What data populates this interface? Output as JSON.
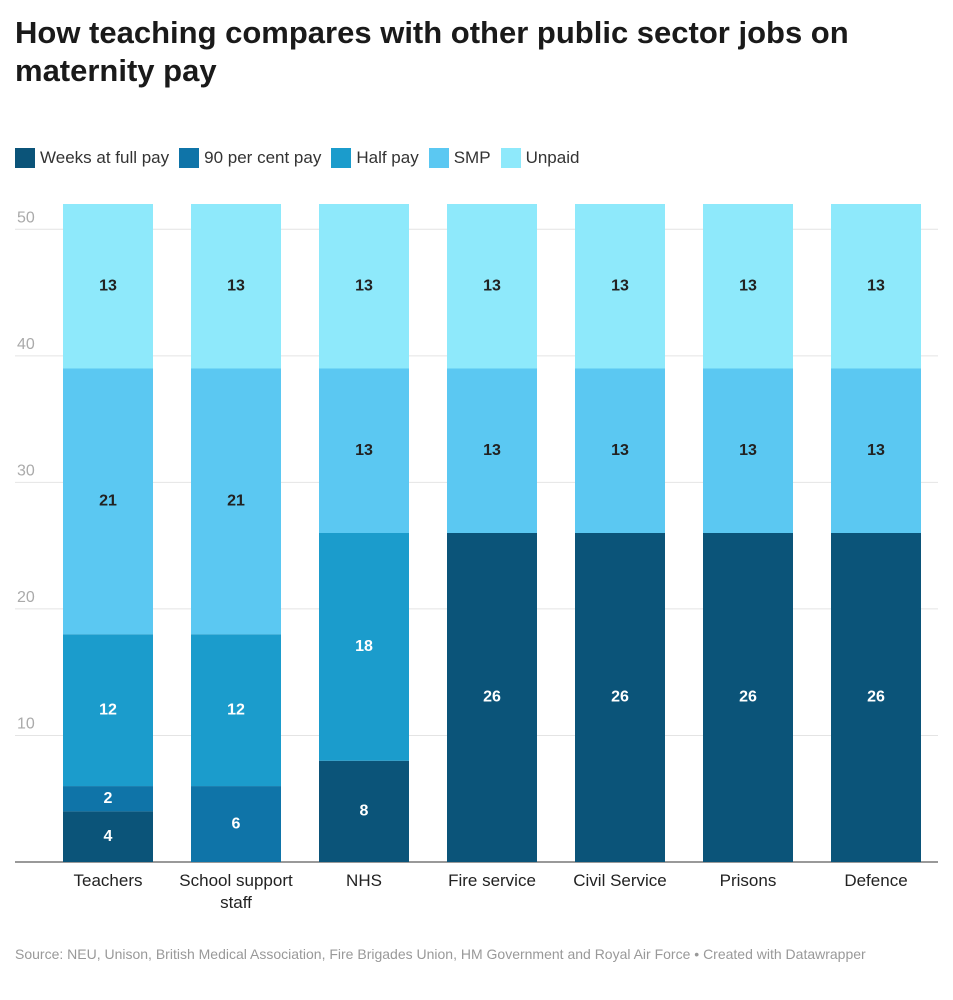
{
  "chart_data": {
    "type": "stacked_bar",
    "title": "How teaching compares with other public sector jobs on maternity pay",
    "categories": [
      "Teachers",
      "School support staff",
      "NHS",
      "Fire service",
      "Civil Service",
      "Prisons",
      "Defence"
    ],
    "series": [
      {
        "name": "Weeks at full pay",
        "color": "#0b5479",
        "values": [
          4,
          0,
          8,
          26,
          26,
          26,
          26
        ]
      },
      {
        "name": "90 per cent pay",
        "color": "#0f74a8",
        "values": [
          2,
          6,
          0,
          0,
          0,
          0,
          0
        ]
      },
      {
        "name": "Half pay",
        "color": "#1b9ccc",
        "values": [
          12,
          12,
          18,
          0,
          0,
          0,
          0
        ]
      },
      {
        "name": "SMP",
        "color": "#5bc8f2",
        "values": [
          21,
          21,
          13,
          13,
          13,
          13,
          13
        ]
      },
      {
        "name": "Unpaid",
        "color": "#8ee9fb",
        "values": [
          13,
          13,
          13,
          13,
          13,
          13,
          13
        ]
      }
    ],
    "ylim": [
      0,
      52
    ],
    "yticks": [
      10,
      20,
      30,
      40,
      50
    ],
    "grid": true,
    "source": "Source: NEU, Unison, British Medical Association, Fire Brigades Union, HM Government and Royal Air Force • Created with Datawrapper"
  }
}
